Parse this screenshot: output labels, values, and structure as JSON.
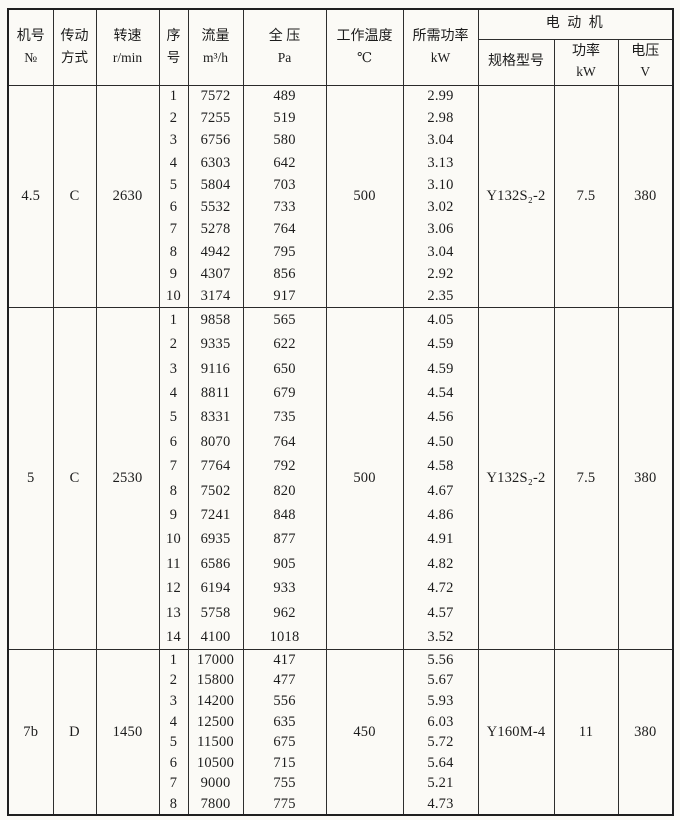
{
  "table": {
    "headers": {
      "machine_no": {
        "line1": "机号",
        "line2": "№"
      },
      "transmission": {
        "line1": "传动",
        "line2": "方式"
      },
      "speed": {
        "line1": "转速",
        "line2": "r/min"
      },
      "seq": {
        "line1": "序",
        "line2": "号"
      },
      "flow": {
        "line1": "流量",
        "line2": "m³/h"
      },
      "pressure": {
        "line1": "全 压",
        "line2": "Pa"
      },
      "temperature": {
        "line1": "工作温度",
        "line2": "℃"
      },
      "required_power": {
        "line1": "所需功率",
        "line2": "kW"
      },
      "motor_group": "电 动 机",
      "motor_model": "规格型号",
      "motor_power": {
        "line1": "功率",
        "line2": "kW"
      },
      "voltage": {
        "line1": "电压",
        "line2": "V"
      }
    },
    "blocks": [
      {
        "machine_no": "4.5",
        "transmission": "C",
        "speed": "2630",
        "temperature": "500",
        "motor_model": "Y132S₂-2",
        "motor_power": "7.5",
        "voltage": "380",
        "rows": [
          {
            "seq": "1",
            "flow": "7572",
            "pressure": "489",
            "power": "2.99"
          },
          {
            "seq": "2",
            "flow": "7255",
            "pressure": "519",
            "power": "2.98"
          },
          {
            "seq": "3",
            "flow": "6756",
            "pressure": "580",
            "power": "3.04"
          },
          {
            "seq": "4",
            "flow": "6303",
            "pressure": "642",
            "power": "3.13"
          },
          {
            "seq": "5",
            "flow": "5804",
            "pressure": "703",
            "power": "3.10"
          },
          {
            "seq": "6",
            "flow": "5532",
            "pressure": "733",
            "power": "3.02"
          },
          {
            "seq": "7",
            "flow": "5278",
            "pressure": "764",
            "power": "3.06"
          },
          {
            "seq": "8",
            "flow": "4942",
            "pressure": "795",
            "power": "3.04"
          },
          {
            "seq": "9",
            "flow": "4307",
            "pressure": "856",
            "power": "2.92"
          },
          {
            "seq": "10",
            "flow": "3174",
            "pressure": "917",
            "power": "2.35"
          }
        ]
      },
      {
        "machine_no": "5",
        "transmission": "C",
        "speed": "2530",
        "temperature": "500",
        "motor_model": "Y132S₂-2",
        "motor_power": "7.5",
        "voltage": "380",
        "rows": [
          {
            "seq": "1",
            "flow": "9858",
            "pressure": "565",
            "power": "4.05"
          },
          {
            "seq": "2",
            "flow": "9335",
            "pressure": "622",
            "power": "4.59"
          },
          {
            "seq": "3",
            "flow": "9116",
            "pressure": "650",
            "power": "4.59"
          },
          {
            "seq": "4",
            "flow": "8811",
            "pressure": "679",
            "power": "4.54"
          },
          {
            "seq": "5",
            "flow": "8331",
            "pressure": "735",
            "power": "4.56"
          },
          {
            "seq": "6",
            "flow": "8070",
            "pressure": "764",
            "power": "4.50"
          },
          {
            "seq": "7",
            "flow": "7764",
            "pressure": "792",
            "power": "4.58"
          },
          {
            "seq": "8",
            "flow": "7502",
            "pressure": "820",
            "power": "4.67"
          },
          {
            "seq": "9",
            "flow": "7241",
            "pressure": "848",
            "power": "4.86"
          },
          {
            "seq": "10",
            "flow": "6935",
            "pressure": "877",
            "power": "4.91"
          },
          {
            "seq": "11",
            "flow": "6586",
            "pressure": "905",
            "power": "4.82"
          },
          {
            "seq": "12",
            "flow": "6194",
            "pressure": "933",
            "power": "4.72"
          },
          {
            "seq": "13",
            "flow": "5758",
            "pressure": "962",
            "power": "4.57"
          },
          {
            "seq": "14",
            "flow": "4100",
            "pressure": "1018",
            "power": "3.52"
          }
        ]
      },
      {
        "machine_no": "7b",
        "transmission": "D",
        "speed": "1450",
        "temperature": "450",
        "motor_model": "Y160M-4",
        "motor_power": "11",
        "voltage": "380",
        "rows": [
          {
            "seq": "1",
            "flow": "17000",
            "pressure": "417",
            "power": "5.56"
          },
          {
            "seq": "2",
            "flow": "15800",
            "pressure": "477",
            "power": "5.67"
          },
          {
            "seq": "3",
            "flow": "14200",
            "pressure": "556",
            "power": "5.93"
          },
          {
            "seq": "4",
            "flow": "12500",
            "pressure": "635",
            "power": "6.03"
          },
          {
            "seq": "5",
            "flow": "11500",
            "pressure": "675",
            "power": "5.72"
          },
          {
            "seq": "6",
            "flow": "10500",
            "pressure": "715",
            "power": "5.64"
          },
          {
            "seq": "7",
            "flow": "9000",
            "pressure": "755",
            "power": "5.21"
          },
          {
            "seq": "8",
            "flow": "7800",
            "pressure": "775",
            "power": "4.73"
          }
        ]
      }
    ]
  }
}
